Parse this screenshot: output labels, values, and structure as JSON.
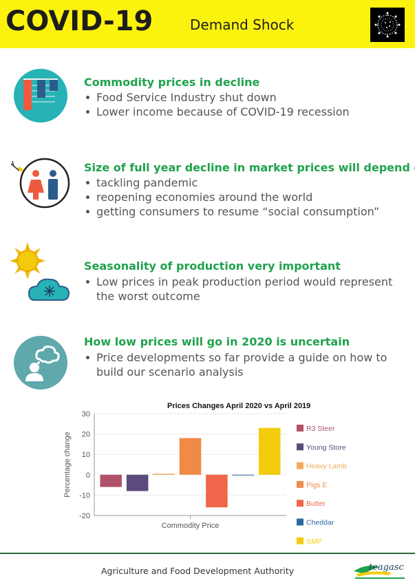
{
  "header": {
    "title": "COVID-19",
    "subtitle": "Demand Shock"
  },
  "sections": [
    {
      "icon": "bar-chart-icon",
      "title": "Commodity prices in decline",
      "bullets": [
        "Food Service Industry shut down",
        "Lower income because of COVID-19 recession"
      ]
    },
    {
      "icon": "people-icon",
      "title": "Size of full year decline in market prices will depend on",
      "bullets": [
        "tackling pandemic",
        "reopening economies around the world",
        "getting consumers to resume “social consumption”"
      ]
    },
    {
      "icon": "sun-cloud-icon",
      "title": "Seasonality of production very important",
      "bullets": [
        "Low prices in peak production period would represent",
        "the worst outcome"
      ]
    },
    {
      "icon": "thinking-person-icon",
      "title": "How low prices will go in 2020 is uncertain",
      "bullets": [
        "Price developments so far provide a guide on how to",
        "build our scenario analysis"
      ]
    }
  ],
  "chart_data": {
    "type": "bar",
    "title": "Prices Changes April 2020 vs April 2019",
    "xlabel": "Commodity Price",
    "ylabel": "Percentage change",
    "ylim": [
      -20,
      30
    ],
    "yticks": [
      30,
      20,
      10,
      0,
      -10,
      -20
    ],
    "grid": true,
    "legend_position": "right",
    "series": [
      {
        "name": "R3 Steer",
        "value": -6,
        "color": "#b0536a"
      },
      {
        "name": "Young Store",
        "value": -8,
        "color": "#5b4a7b"
      },
      {
        "name": "Heavy Lamb",
        "value": 0.5,
        "color": "#f2a95c"
      },
      {
        "name": "Pigs E",
        "value": 18,
        "color": "#f08a47"
      },
      {
        "name": "Butter",
        "value": -16,
        "color": "#ef664a"
      },
      {
        "name": "Cheddar",
        "value": -0.3,
        "color": "#2c6aa0"
      },
      {
        "name": "SMP",
        "value": 23,
        "color": "#f2cc0c"
      }
    ]
  },
  "footer": {
    "text": "Agriculture and Food Development Authority",
    "logo_text": "teagasc"
  }
}
